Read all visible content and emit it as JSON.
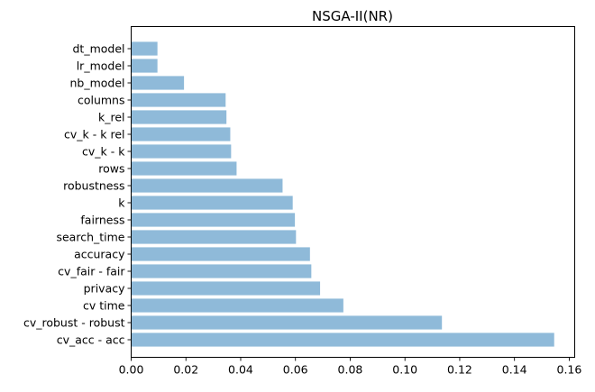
{
  "chart_data": {
    "type": "bar",
    "orientation": "horizontal",
    "title": "NSGA-II(NR)",
    "xlabel": "",
    "ylabel": "",
    "xlim": [
      0,
      0.162
    ],
    "x_ticks": [
      "0.00",
      "0.02",
      "0.04",
      "0.06",
      "0.08",
      "0.10",
      "0.12",
      "0.14",
      "0.16"
    ],
    "categories": [
      "cv_acc - acc",
      "cv_robust - robust",
      "cv time",
      "privacy",
      "cv_fair - fair",
      "accuracy",
      "search_time",
      "fairness",
      "k",
      "robustness",
      "rows",
      "cv_k - k",
      "cv_k - k rel",
      "k_rel",
      "columns",
      "nb_model",
      "lr_model",
      "dt_model"
    ],
    "values": [
      0.1545,
      0.1135,
      0.0775,
      0.069,
      0.0658,
      0.0653,
      0.0602,
      0.0598,
      0.059,
      0.0553,
      0.0385,
      0.0365,
      0.0362,
      0.0348,
      0.0345,
      0.0193,
      0.0096,
      0.0096
    ],
    "bar_color": "#8fbad9",
    "grid": false,
    "legend": "none"
  }
}
